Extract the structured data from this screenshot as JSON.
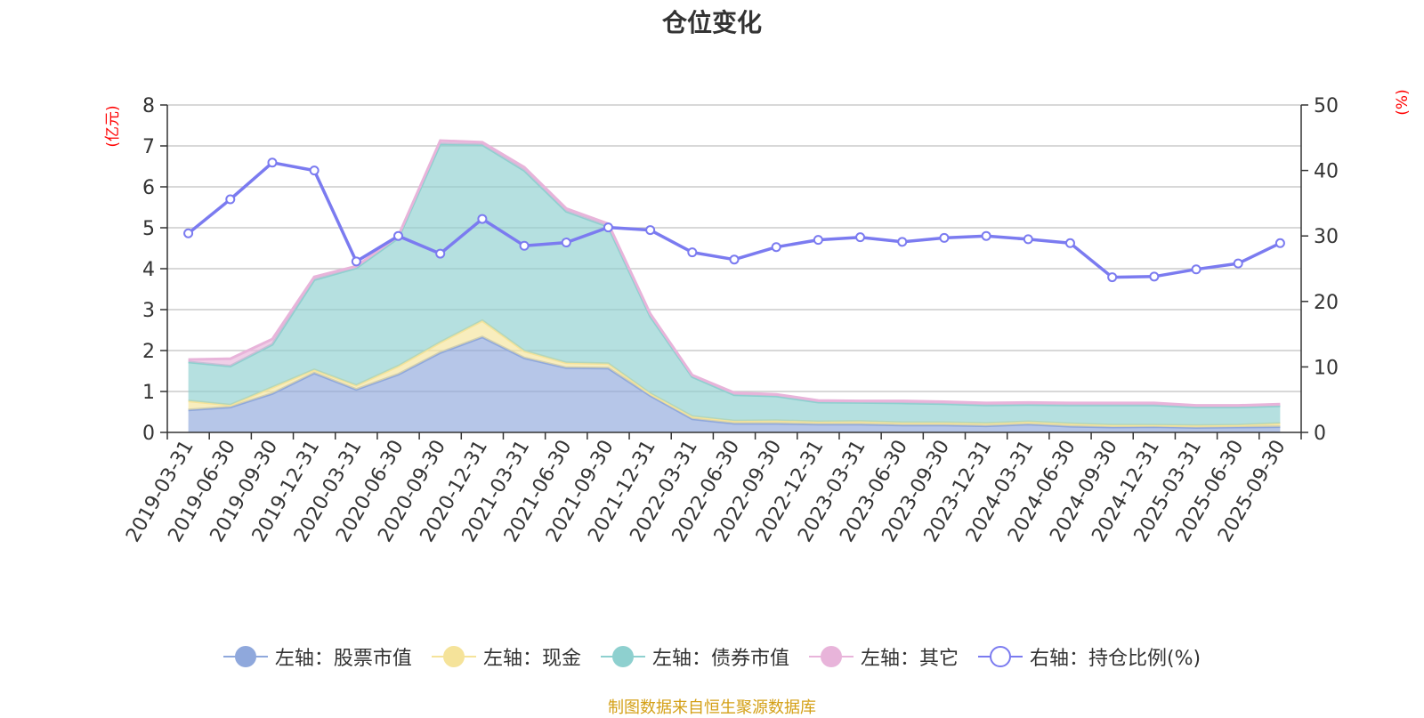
{
  "chart_data": {
    "type": "area",
    "title": "仓位变化",
    "left_axis_unit": "(亿元)",
    "right_axis_unit": "(%)",
    "ylim_left": [
      0,
      8
    ],
    "yticks_left": [
      "0",
      "1",
      "2",
      "3",
      "4",
      "5",
      "6",
      "7",
      "8"
    ],
    "ylim_right": [
      0,
      50
    ],
    "yticks_right": [
      "0",
      "10",
      "20",
      "30",
      "40",
      "50"
    ],
    "categories": [
      "2019-03-31",
      "2019-06-30",
      "2019-09-30",
      "2019-12-31",
      "2020-03-31",
      "2020-06-30",
      "2020-09-30",
      "2020-12-31",
      "2021-03-31",
      "2021-06-30",
      "2021-09-30",
      "2021-12-31",
      "2022-03-31",
      "2022-06-30",
      "2022-09-30",
      "2022-12-31",
      "2023-03-31",
      "2023-06-30",
      "2023-09-30",
      "2023-12-31",
      "2024-03-31",
      "2024-06-30",
      "2024-09-30",
      "2024-12-31",
      "2025-03-31",
      "2025-06-30",
      "2025-09-30"
    ],
    "series": [
      {
        "name": "左轴：股票市值",
        "axis": "left",
        "kind": "stacked-area",
        "color": "#8fa8dc",
        "values": [
          0.55,
          0.62,
          0.95,
          1.45,
          1.05,
          1.42,
          1.95,
          2.33,
          1.82,
          1.58,
          1.57,
          0.9,
          0.33,
          0.22,
          0.22,
          0.2,
          0.2,
          0.18,
          0.18,
          0.16,
          0.2,
          0.15,
          0.13,
          0.14,
          0.12,
          0.13,
          0.14
        ]
      },
      {
        "name": "左轴：现金",
        "axis": "left",
        "kind": "stacked-area",
        "color": "#f5e39a",
        "values": [
          0.22,
          0.05,
          0.15,
          0.08,
          0.1,
          0.2,
          0.25,
          0.4,
          0.17,
          0.12,
          0.11,
          0.05,
          0.06,
          0.06,
          0.07,
          0.06,
          0.07,
          0.06,
          0.06,
          0.06,
          0.06,
          0.06,
          0.05,
          0.04,
          0.05,
          0.05,
          0.08
        ]
      },
      {
        "name": "左轴：债券市值",
        "axis": "left",
        "kind": "stacked-area",
        "color": "#8ed0cf",
        "values": [
          0.95,
          0.95,
          1.05,
          2.2,
          2.87,
          3.13,
          4.85,
          4.3,
          4.41,
          3.7,
          3.35,
          1.89,
          0.97,
          0.64,
          0.6,
          0.48,
          0.46,
          0.48,
          0.46,
          0.45,
          0.42,
          0.46,
          0.49,
          0.49,
          0.45,
          0.44,
          0.43
        ]
      },
      {
        "name": "左轴：其它",
        "axis": "left",
        "kind": "stacked-area",
        "color": "#e8b4da",
        "values": [
          0.06,
          0.18,
          0.13,
          0.07,
          0.04,
          0.05,
          0.08,
          0.06,
          0.08,
          0.07,
          0.07,
          0.06,
          0.04,
          0.05,
          0.04,
          0.04,
          0.04,
          0.05,
          0.05,
          0.05,
          0.05,
          0.05,
          0.05,
          0.05,
          0.04,
          0.04,
          0.04
        ]
      },
      {
        "name": "右轴：持仓比例(%)",
        "axis": "right",
        "kind": "line",
        "color": "#7b7bf0",
        "values": [
          30.4,
          35.6,
          41.2,
          40.0,
          26.1,
          30.0,
          27.3,
          32.6,
          28.5,
          29.0,
          31.3,
          30.9,
          27.5,
          26.4,
          28.3,
          29.4,
          29.8,
          29.1,
          29.7,
          30.0,
          29.5,
          28.9,
          23.7,
          23.8,
          24.9,
          25.8,
          28.9
        ]
      }
    ]
  },
  "legend": [
    {
      "label": "左轴：股票市值",
      "color": "#8fa8dc",
      "style": "filled"
    },
    {
      "label": "左轴：现金",
      "color": "#f5e39a",
      "style": "filled"
    },
    {
      "label": "左轴：债券市值",
      "color": "#8ed0cf",
      "style": "filled"
    },
    {
      "label": "左轴：其它",
      "color": "#e8b4da",
      "style": "filled"
    },
    {
      "label": "右轴：持仓比例(%)",
      "color": "#7b7bf0",
      "style": "hollow"
    }
  ],
  "source_note": "制图数据来自恒生聚源数据库"
}
